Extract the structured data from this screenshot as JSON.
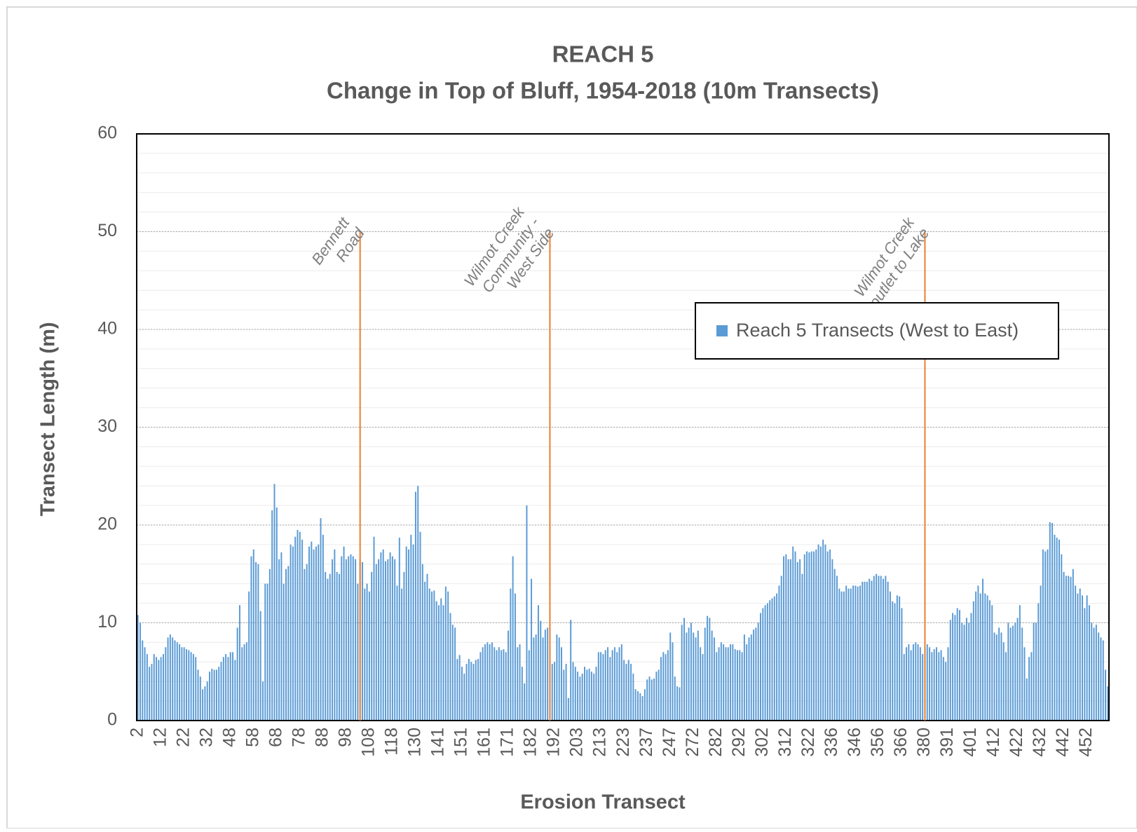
{
  "chart_data": {
    "type": "bar",
    "title": "REACH 5",
    "subtitle": "Change in Top of Bluff, 1954-2018 (10m Transects)",
    "x_label": "Erosion  Transect",
    "y_label": "Transect  Length (m)",
    "ylim": [
      0,
      60
    ],
    "yticks": [
      0,
      10,
      20,
      30,
      40,
      50,
      60
    ],
    "grid": true,
    "minor_grid_step": 2,
    "legend": "upper right",
    "categories": [
      "2",
      null,
      null,
      null,
      null,
      null,
      null,
      null,
      null,
      null,
      "12",
      null,
      null,
      null,
      null,
      null,
      null,
      null,
      null,
      null,
      "22",
      null,
      null,
      null,
      null,
      null,
      null,
      null,
      null,
      null,
      "32",
      null,
      null,
      null,
      null,
      null,
      null,
      null,
      null,
      null,
      "48",
      null,
      null,
      null,
      null,
      null,
      null,
      null,
      null,
      null,
      "58",
      null,
      null,
      null,
      null,
      null,
      null,
      null,
      null,
      null,
      "68",
      null,
      null,
      null,
      null,
      null,
      null,
      null,
      null,
      null,
      "78",
      null,
      null,
      null,
      null,
      null,
      null,
      null,
      null,
      null,
      "88",
      null,
      null,
      null,
      null,
      null,
      null,
      null,
      null,
      null,
      "98",
      null,
      null,
      null,
      null,
      null,
      null,
      null,
      null,
      null,
      "108",
      null,
      null,
      null,
      null,
      null,
      null,
      null,
      null,
      null,
      "118",
      null,
      null,
      null,
      null,
      null,
      null,
      null,
      null,
      null,
      "130",
      null,
      null,
      null,
      null,
      null,
      null,
      null,
      null,
      null,
      "141",
      null,
      null,
      null,
      null,
      null,
      null,
      null,
      null,
      null,
      "151",
      null,
      null,
      null,
      null,
      null,
      null,
      null,
      null,
      null,
      "161",
      null,
      null,
      null,
      null,
      null,
      null,
      null,
      null,
      null,
      "171",
      null,
      null,
      null,
      null,
      null,
      null,
      null,
      null,
      null,
      "182",
      null,
      null,
      null,
      null,
      null,
      null,
      null,
      null,
      null,
      "192",
      null,
      null,
      null,
      null,
      null,
      null,
      null,
      null,
      null,
      "203",
      null,
      null,
      null,
      null,
      null,
      null,
      null,
      null,
      null,
      "213",
      null,
      null,
      null,
      null,
      null,
      null,
      null,
      null,
      null,
      "223",
      null,
      null,
      null,
      null,
      null,
      null,
      null,
      null,
      null,
      "237",
      null,
      null,
      null,
      null,
      null,
      null,
      null,
      null,
      null,
      "247",
      null,
      null,
      null,
      null,
      null,
      null,
      null,
      null,
      null,
      "272",
      null,
      null,
      null,
      null,
      null,
      null,
      null,
      null,
      null,
      "282",
      null,
      null,
      null,
      null,
      null,
      null,
      null,
      null,
      null,
      "292",
      null,
      null,
      null,
      null,
      null,
      null,
      null,
      null,
      null,
      "302",
      null,
      null,
      null,
      null,
      null,
      null,
      null,
      null,
      null,
      "312",
      null,
      null,
      null,
      null,
      null,
      null,
      null,
      null,
      null,
      "322",
      null,
      null,
      null,
      null,
      null,
      null,
      null,
      null,
      null,
      "336",
      null,
      null,
      null,
      null,
      null,
      null,
      null,
      null,
      null,
      "346",
      null,
      null,
      null,
      null,
      null,
      null,
      null,
      null,
      null,
      "356",
      null,
      null,
      null,
      null,
      null,
      null,
      null,
      null,
      null,
      "366",
      null,
      null,
      null,
      null,
      null,
      null,
      null,
      null,
      null,
      "380",
      null,
      null,
      null,
      null,
      null,
      null,
      null,
      null,
      null,
      "391",
      null,
      null,
      null,
      null,
      null,
      null,
      null,
      null,
      null,
      "401",
      null,
      null,
      null,
      null,
      null,
      null,
      null,
      null,
      null,
      "412",
      null,
      null,
      null,
      null,
      null,
      null,
      null,
      null,
      null,
      "422",
      null,
      null,
      null,
      null,
      null,
      null,
      null,
      null,
      null,
      "432",
      null,
      null,
      null,
      null,
      null,
      null,
      null,
      null,
      null,
      "442",
      null,
      null,
      null,
      null,
      null,
      null,
      null,
      null,
      null,
      "452",
      null,
      null,
      null,
      null,
      null,
      null,
      null,
      null,
      null
    ],
    "series": [
      {
        "name": "Reach 5 Transects (West to East)",
        "color": "#5b9bd5",
        "values": [
          10.8,
          10,
          8.2,
          7.5,
          6.8,
          5.5,
          5.8,
          6.8,
          6.5,
          6.2,
          6.5,
          6.8,
          7.5,
          8.5,
          8.8,
          8.5,
          8.2,
          8,
          7.8,
          7.5,
          7.5,
          7.3,
          7.2,
          7,
          6.8,
          6.5,
          5.2,
          4.5,
          3.2,
          3.5,
          4,
          5,
          5.3,
          5.2,
          5.2,
          5.5,
          6,
          6.5,
          6.8,
          6.5,
          7,
          7,
          6.2,
          9.5,
          11.8,
          7.5,
          7.8,
          8,
          13.2,
          16.8,
          17.5,
          16.2,
          16,
          11.2,
          4,
          14,
          14,
          15.5,
          21.5,
          24.2,
          21.8,
          16.5,
          17.2,
          14,
          15.5,
          15.8,
          18,
          17.8,
          18.8,
          19.5,
          19.3,
          18.5,
          15.5,
          16,
          17.8,
          18.3,
          17.5,
          17.8,
          18,
          20.7,
          19,
          15.2,
          14.5,
          15,
          16.5,
          17.5,
          15.2,
          15,
          16.8,
          17.8,
          16.5,
          16.8,
          17,
          16.8,
          16.5,
          14,
          16.5,
          16.2,
          13.5,
          14,
          13.2,
          15.2,
          18.8,
          16,
          16.5,
          17.2,
          17.5,
          16.3,
          16.5,
          17.2,
          16.8,
          16.5,
          13.8,
          18.7,
          13.5,
          15.2,
          17.8,
          17.5,
          19,
          18,
          23.4,
          24,
          19.3,
          16,
          14.2,
          15,
          13.5,
          13.2,
          13.3,
          12.2,
          11.8,
          12.5,
          11.8,
          13.7,
          13.2,
          11,
          9.8,
          9.5,
          6.3,
          6.7,
          5.5,
          4.8,
          5.8,
          6.3,
          6,
          5.8,
          6.2,
          6.3,
          7,
          7.5,
          7.8,
          8,
          7.8,
          8,
          7.5,
          7.2,
          7.5,
          7.2,
          7.3,
          7,
          9.2,
          13.5,
          16.8,
          13,
          7.5,
          7.8,
          5.5,
          3.8,
          22,
          7.2,
          14.5,
          8.5,
          8.8,
          11.8,
          10.2,
          8.5,
          9.3,
          9.5,
          7.5,
          5.8,
          6,
          8.8,
          8.5,
          7.5,
          5.2,
          5.8,
          2.3,
          10.3,
          6,
          5.5,
          5,
          4.5,
          4.8,
          5.5,
          5.2,
          5.3,
          5,
          4.8,
          5.5,
          7,
          7,
          6.8,
          7.2,
          7.5,
          6.5,
          7.2,
          7.5,
          7,
          7.5,
          7.8,
          6.2,
          5.8,
          6.2,
          5.8,
          4.8,
          3.2,
          3,
          2.8,
          2.5,
          3.2,
          4.2,
          4.5,
          4.2,
          4.3,
          5,
          5.2,
          6.5,
          7,
          6.8,
          7.2,
          9,
          8,
          4.5,
          3.5,
          3.4,
          9.8,
          10.5,
          9,
          9.5,
          10,
          9,
          8.5,
          9.2,
          7.5,
          6.8,
          9.5,
          10.7,
          10.5,
          9.2,
          8.5,
          7,
          7.5,
          8,
          7.8,
          7.5,
          7.5,
          7.8,
          7.8,
          7.3,
          7.2,
          7.2,
          7,
          8.8,
          7.8,
          8.5,
          8.8,
          9.3,
          9.5,
          10,
          11,
          11.5,
          11.8,
          12,
          12.3,
          12.5,
          12.7,
          13,
          13.8,
          14.8,
          16.8,
          17,
          16.5,
          16.5,
          17.8,
          17.3,
          16.2,
          16.5,
          15,
          17,
          17.3,
          17.2,
          17.3,
          17.3,
          17.5,
          18,
          17.8,
          18.5,
          18,
          17.3,
          17.5,
          16.5,
          15.5,
          14.8,
          13.5,
          13.2,
          13.2,
          13.8,
          13.5,
          13.5,
          13.8,
          13.8,
          13.7,
          13.8,
          14.2,
          14.2,
          14.2,
          14.5,
          14.3,
          14.8,
          15,
          14.8,
          14.8,
          14.5,
          14.8,
          14.2,
          13.2,
          12.2,
          12,
          12.8,
          12.7,
          11.5,
          6.8,
          7.5,
          7.8,
          7.2,
          7.8,
          8,
          7.8,
          7.5,
          6.8,
          7.5,
          7.8,
          7.5,
          7,
          7.3,
          7.5,
          7,
          7.2,
          6.5,
          6,
          7.5,
          10.3,
          11,
          10.8,
          11.5,
          11.3,
          10,
          9.8,
          10.5,
          10,
          11,
          12.2,
          13.2,
          13.8,
          13,
          14.5,
          13,
          12.8,
          12.3,
          11.8,
          9,
          8.8,
          9.5,
          9,
          8,
          7,
          10,
          9.5,
          9.7,
          10,
          10.5,
          11.8,
          9.5,
          7.5,
          4.3,
          6.5,
          7,
          10,
          10,
          12,
          13.8,
          17.5,
          17.3,
          17.5,
          20.3,
          20.2,
          19,
          18.7,
          18.5,
          17,
          15.2,
          14.8,
          14.8,
          14.7,
          15.5,
          13.8,
          13,
          13.5,
          12.8,
          11.5,
          12.8,
          11.8,
          10,
          9.5,
          9.8,
          9,
          8.5,
          8.2,
          5.2,
          3.5
        ]
      }
    ],
    "annotations": [
      {
        "lines": [
          "Bennett",
          "Road"
        ],
        "bar_index": 96,
        "y": 50,
        "color": "#ed7d31"
      },
      {
        "lines": [
          "Wilmot Creek",
          "Community -",
          "West Side"
        ],
        "bar_index": 178,
        "y": 50,
        "color": "#ed7d31"
      },
      {
        "lines": [
          "Wilmot Creek",
          "outlet to Lake"
        ],
        "bar_index": 340,
        "y": 50,
        "color": "#ed7d31"
      }
    ]
  }
}
